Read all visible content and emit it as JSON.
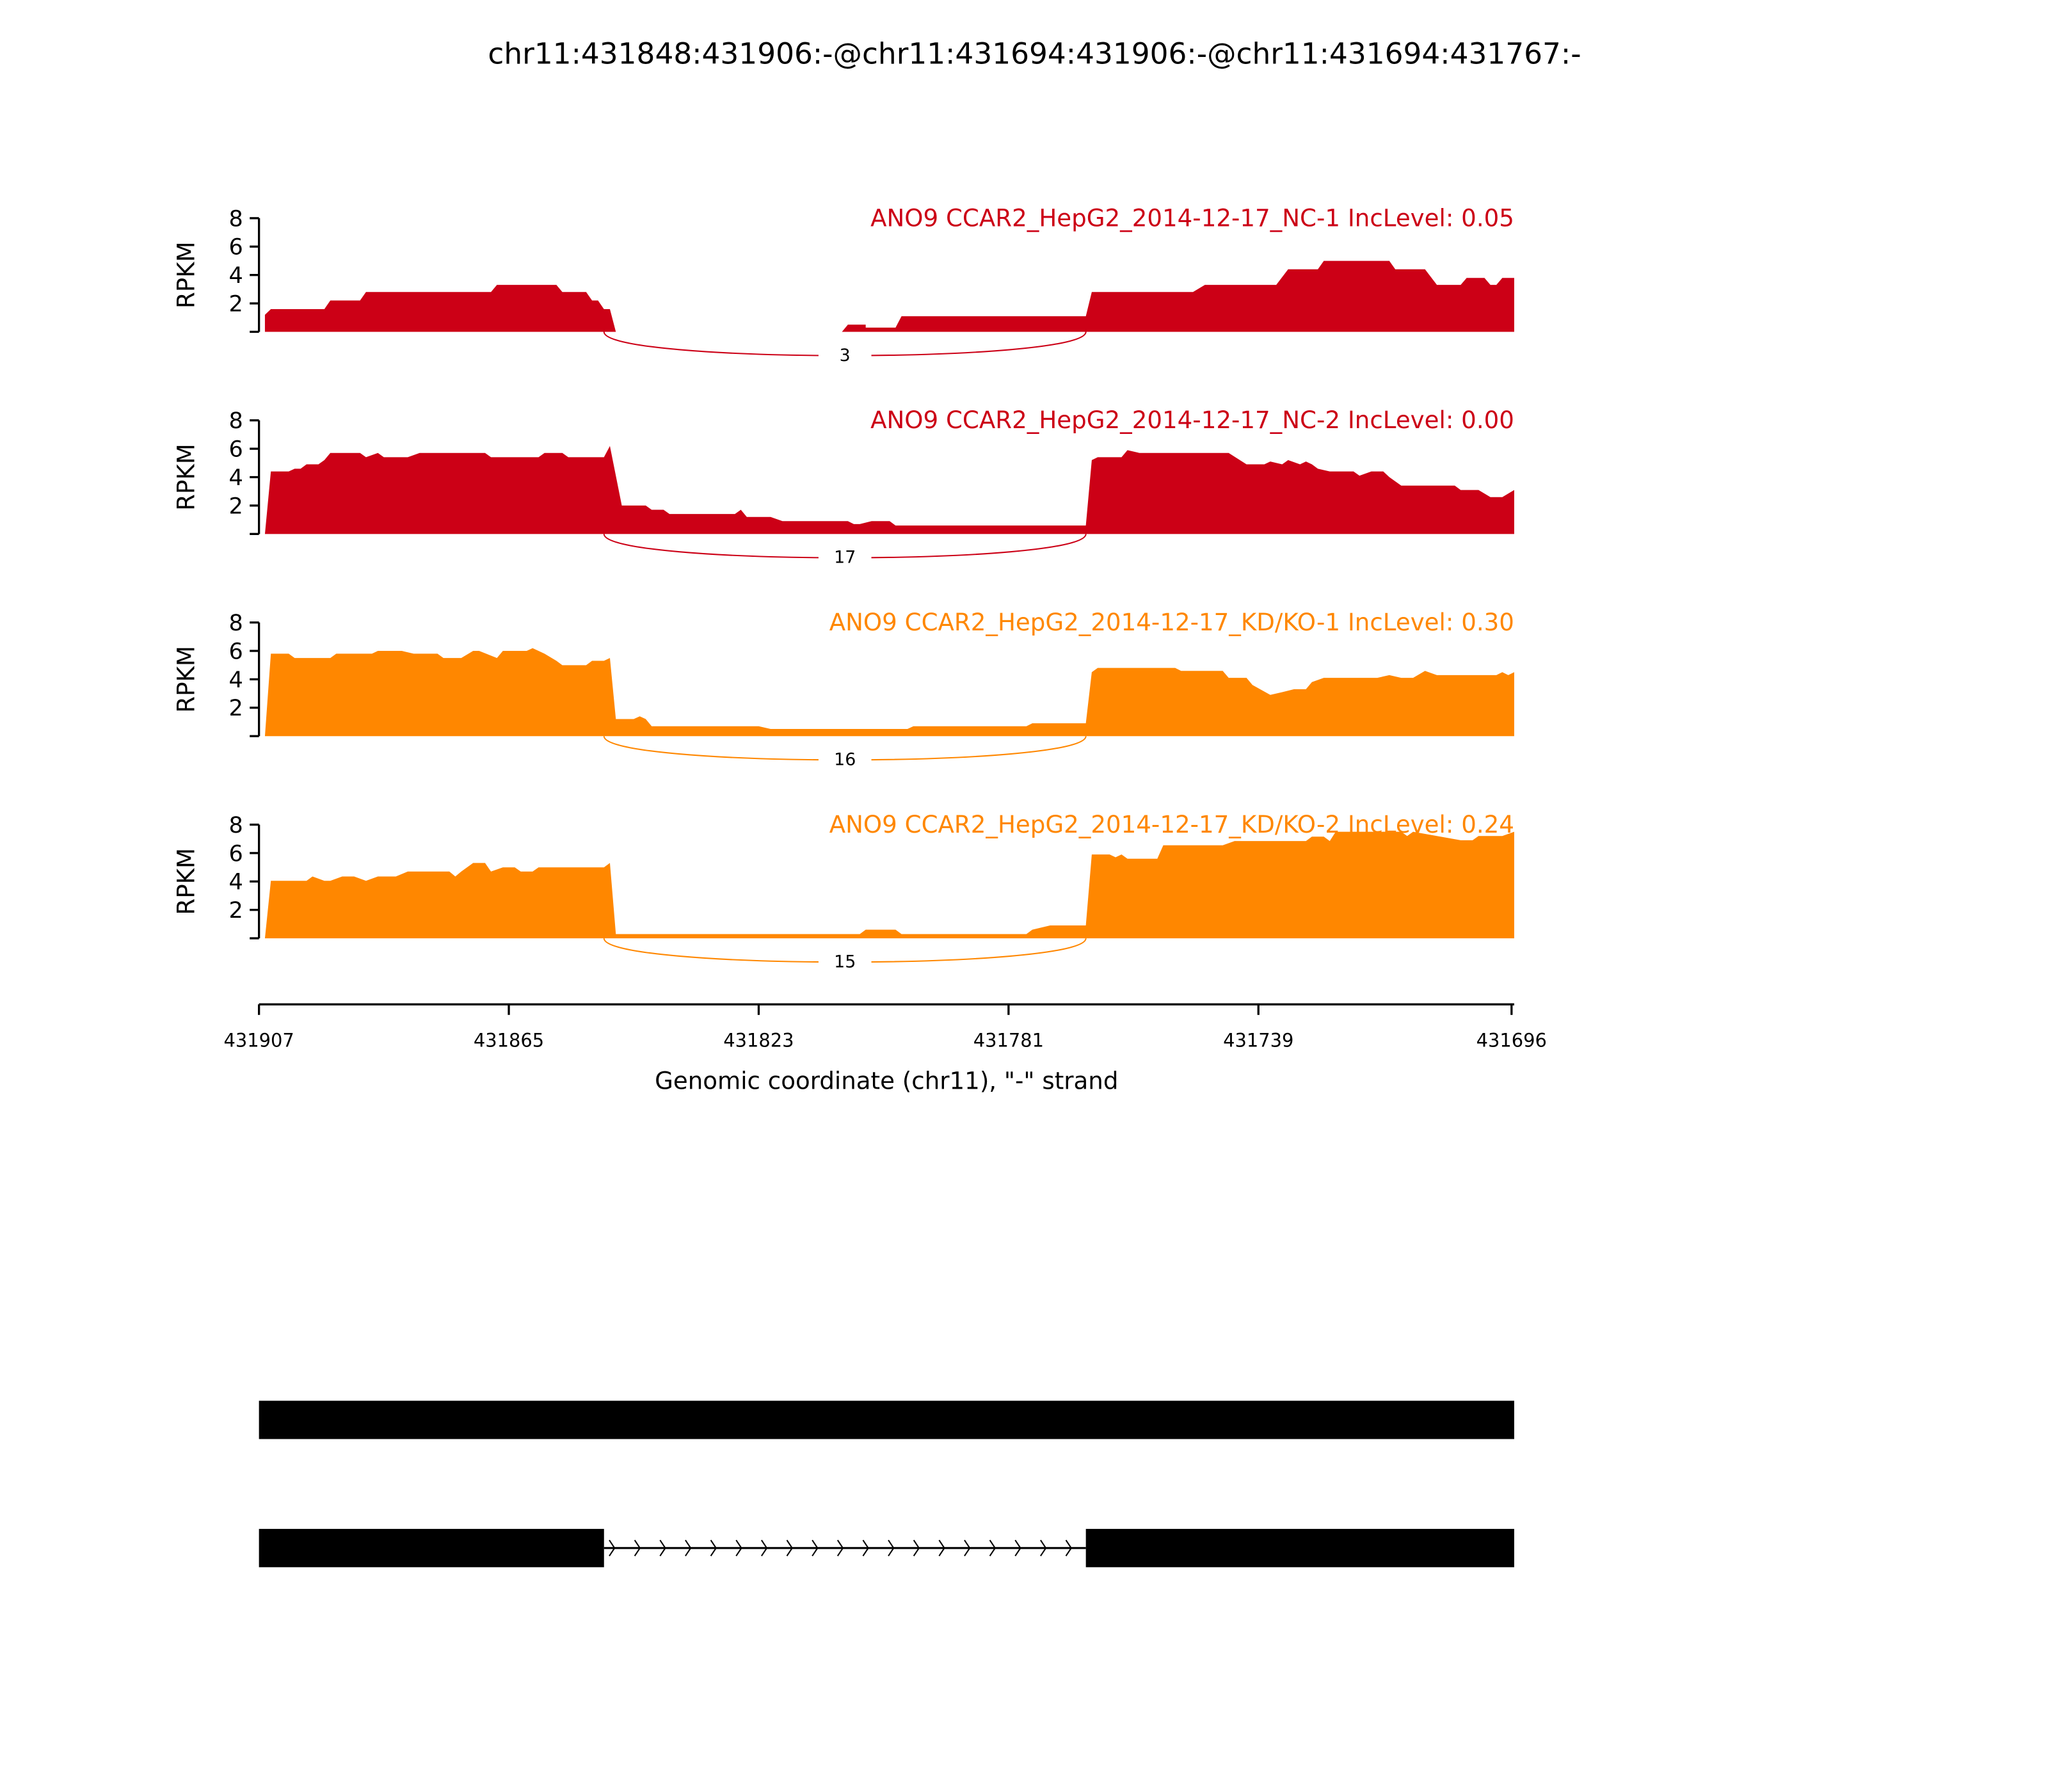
{
  "chart_data": {
    "type": "area",
    "title": "chr11:431848:431906:-@chr11:431694:431906:-@chr11:431694:431767:-",
    "xlabel": "Genomic coordinate (chr11), \"-\" strand",
    "xlim": [
      431907,
      431696
    ],
    "xticks": [
      "431907",
      "431865",
      "431823",
      "431781",
      "431739",
      "431696"
    ],
    "xtick_values": [
      431907,
      431865,
      431823,
      431781,
      431739,
      431696
    ],
    "ylabel": "RPKM",
    "ylim": [
      0,
      8
    ],
    "yticks": [
      "2",
      "4",
      "6",
      "8"
    ],
    "ytick_values": [
      2,
      4,
      6,
      8
    ],
    "junction": {
      "start": 431849,
      "end": 431768
    },
    "panels": [
      {
        "label": "ANO9 CCAR2_HepG2_2014-12-17_NC-1 IncLevel: 0.05",
        "color": "#CC0016",
        "junction_count": "3",
        "coverage": [
          [
            431906,
            1.2
          ],
          [
            431905,
            1.6
          ],
          [
            431896,
            1.6
          ],
          [
            431895,
            2.2
          ],
          [
            431890,
            2.2
          ],
          [
            431889,
            2.8
          ],
          [
            431868,
            2.8
          ],
          [
            431867,
            3.3
          ],
          [
            431857,
            3.3
          ],
          [
            431856,
            2.8
          ],
          [
            431852,
            2.8
          ],
          [
            431851,
            2.2
          ],
          [
            431850,
            2.2
          ],
          [
            431849,
            1.6
          ],
          [
            431848,
            1.6
          ],
          [
            431847,
            0
          ],
          [
            431809,
            0
          ],
          [
            431808,
            0.5
          ],
          [
            431805,
            0.5
          ],
          [
            431805,
            0.3
          ],
          [
            431800,
            0.3
          ],
          [
            431799,
            1.1
          ],
          [
            431768,
            1.1
          ],
          [
            431767,
            2.8
          ],
          [
            431750,
            2.8
          ],
          [
            431748,
            3.3
          ],
          [
            431736,
            3.3
          ],
          [
            431734,
            4.4
          ],
          [
            431729,
            4.4
          ],
          [
            431728,
            5.0
          ],
          [
            431717,
            5.0
          ],
          [
            431716,
            4.4
          ],
          [
            431711,
            4.4
          ],
          [
            431709,
            3.3
          ],
          [
            431705,
            3.3
          ],
          [
            431704,
            3.8
          ],
          [
            431701,
            3.8
          ],
          [
            431700,
            3.3
          ],
          [
            431699,
            3.3
          ],
          [
            431698,
            3.8
          ],
          [
            431696,
            3.8
          ]
        ]
      },
      {
        "label": "ANO9 CCAR2_HepG2_2014-12-17_NC-2 IncLevel: 0.00",
        "color": "#CC0016",
        "junction_count": "17",
        "coverage": [
          [
            431906,
            0
          ],
          [
            431905,
            4.4
          ],
          [
            431902,
            4.4
          ],
          [
            431901,
            4.6
          ],
          [
            431900,
            4.6
          ],
          [
            431899,
            4.9
          ],
          [
            431897,
            4.9
          ],
          [
            431896,
            5.2
          ],
          [
            431895,
            5.7
          ],
          [
            431890,
            5.7
          ],
          [
            431889,
            5.4
          ],
          [
            431887,
            5.7
          ],
          [
            431886,
            5.4
          ],
          [
            431882,
            5.4
          ],
          [
            431880,
            5.7
          ],
          [
            431869,
            5.7
          ],
          [
            431868,
            5.4
          ],
          [
            431860,
            5.4
          ],
          [
            431859,
            5.7
          ],
          [
            431856,
            5.7
          ],
          [
            431855,
            5.4
          ],
          [
            431849,
            5.4
          ],
          [
            431848,
            6.2
          ],
          [
            431846,
            2.0
          ],
          [
            431842,
            2.0
          ],
          [
            431841,
            1.7
          ],
          [
            431839,
            1.7
          ],
          [
            431838,
            1.4
          ],
          [
            431827,
            1.4
          ],
          [
            431826,
            1.7
          ],
          [
            431825,
            1.2
          ],
          [
            431821,
            1.2
          ],
          [
            431819,
            0.9
          ],
          [
            431808,
            0.9
          ],
          [
            431807,
            0.7
          ],
          [
            431806,
            0.7
          ],
          [
            431804,
            0.9
          ],
          [
            431801,
            0.9
          ],
          [
            431800,
            0.6
          ],
          [
            431768,
            0.6
          ],
          [
            431767,
            5.2
          ],
          [
            431766,
            5.4
          ],
          [
            431762,
            5.4
          ],
          [
            431761,
            5.9
          ],
          [
            431759,
            5.7
          ],
          [
            431744,
            5.7
          ],
          [
            431741,
            4.9
          ],
          [
            431738,
            4.9
          ],
          [
            431737,
            5.1
          ],
          [
            431735,
            4.9
          ],
          [
            431734,
            5.2
          ],
          [
            431732,
            4.9
          ],
          [
            431731,
            5.1
          ],
          [
            431730,
            4.9
          ],
          [
            431729,
            4.6
          ],
          [
            431727,
            4.4
          ],
          [
            431723,
            4.4
          ],
          [
            431722,
            4.1
          ],
          [
            431720,
            4.4
          ],
          [
            431718,
            4.4
          ],
          [
            431717,
            4.0
          ],
          [
            431715,
            3.4
          ],
          [
            431706,
            3.4
          ],
          [
            431705,
            3.1
          ],
          [
            431702,
            3.1
          ],
          [
            431700,
            2.6
          ],
          [
            431698,
            2.6
          ],
          [
            431696,
            3.1
          ]
        ]
      },
      {
        "label": "ANO9 CCAR2_HepG2_2014-12-17_KD/KO-1 IncLevel: 0.30",
        "color": "#FF8700",
        "junction_count": "16",
        "coverage": [
          [
            431906,
            0
          ],
          [
            431905,
            5.8
          ],
          [
            431902,
            5.8
          ],
          [
            431901,
            5.5
          ],
          [
            431895,
            5.5
          ],
          [
            431894,
            5.8
          ],
          [
            431888,
            5.8
          ],
          [
            431887,
            6.0
          ],
          [
            431883,
            6.0
          ],
          [
            431881,
            5.8
          ],
          [
            431877,
            5.8
          ],
          [
            431876,
            5.5
          ],
          [
            431873,
            5.5
          ],
          [
            431871,
            6.0
          ],
          [
            431870,
            6.0
          ],
          [
            431867,
            5.5
          ],
          [
            431866,
            6.0
          ],
          [
            431862,
            6.0
          ],
          [
            431861,
            6.2
          ],
          [
            431859,
            5.8
          ],
          [
            431857,
            5.3
          ],
          [
            431856,
            5.0
          ],
          [
            431852,
            5.0
          ],
          [
            431851,
            5.3
          ],
          [
            431849,
            5.3
          ],
          [
            431848,
            5.5
          ],
          [
            431847,
            1.2
          ],
          [
            431844,
            1.2
          ],
          [
            431843,
            1.4
          ],
          [
            431842,
            1.2
          ],
          [
            431841,
            0.7
          ],
          [
            431823,
            0.7
          ],
          [
            431821,
            0.5
          ],
          [
            431798,
            0.5
          ],
          [
            431797,
            0.7
          ],
          [
            431778,
            0.7
          ],
          [
            431777,
            0.9
          ],
          [
            431768,
            0.9
          ],
          [
            431767,
            4.5
          ],
          [
            431766,
            4.8
          ],
          [
            431753,
            4.8
          ],
          [
            431752,
            4.6
          ],
          [
            431745,
            4.6
          ],
          [
            431744,
            4.1
          ],
          [
            431741,
            4.1
          ],
          [
            431740,
            3.6
          ],
          [
            431737,
            2.9
          ],
          [
            431735,
            3.1
          ],
          [
            431733,
            3.3
          ],
          [
            431731,
            3.3
          ],
          [
            431730,
            3.8
          ],
          [
            431728,
            4.1
          ],
          [
            431719,
            4.1
          ],
          [
            431717,
            4.3
          ],
          [
            431715,
            4.1
          ],
          [
            431713,
            4.1
          ],
          [
            431711,
            4.6
          ],
          [
            431709,
            4.3
          ],
          [
            431699,
            4.3
          ],
          [
            431698,
            4.5
          ],
          [
            431697,
            4.3
          ],
          [
            431696,
            4.5
          ]
        ]
      },
      {
        "label": "ANO9 CCAR2_HepG2_2014-12-17_KD/KO-2 IncLevel: 0.24",
        "color": "#FF8700",
        "junction_count": "15",
        "coverage": [
          [
            431906,
            0
          ],
          [
            431905,
            4.05
          ],
          [
            431899,
            4.05
          ],
          [
            431898,
            4.35
          ],
          [
            431896,
            4.05
          ],
          [
            431895,
            4.05
          ],
          [
            431893,
            4.35
          ],
          [
            431891,
            4.35
          ],
          [
            431889,
            4.05
          ],
          [
            431887,
            4.35
          ],
          [
            431884,
            4.35
          ],
          [
            431882,
            4.7
          ],
          [
            431875,
            4.7
          ],
          [
            431874,
            4.35
          ],
          [
            431873,
            4.7
          ],
          [
            431871,
            5.3
          ],
          [
            431869,
            5.3
          ],
          [
            431868,
            4.7
          ],
          [
            431866,
            5.0
          ],
          [
            431864,
            5.0
          ],
          [
            431863,
            4.7
          ],
          [
            431861,
            4.7
          ],
          [
            431860,
            5.0
          ],
          [
            431849,
            5.0
          ],
          [
            431848,
            5.3
          ],
          [
            431847,
            0.3
          ],
          [
            431806,
            0.3
          ],
          [
            431805,
            0.6
          ],
          [
            431800,
            0.6
          ],
          [
            431799,
            0.3
          ],
          [
            431778,
            0.3
          ],
          [
            431777,
            0.6
          ],
          [
            431774,
            0.9
          ],
          [
            431768,
            0.9
          ],
          [
            431767,
            5.9
          ],
          [
            431764,
            5.9
          ],
          [
            431763,
            5.7
          ],
          [
            431762,
            5.9
          ],
          [
            431761,
            5.6
          ],
          [
            431756,
            5.6
          ],
          [
            431755,
            6.55
          ],
          [
            431745,
            6.55
          ],
          [
            431743,
            6.85
          ],
          [
            431731,
            6.85
          ],
          [
            431730,
            7.15
          ],
          [
            431728,
            7.15
          ],
          [
            431727,
            6.85
          ],
          [
            431726,
            7.5
          ],
          [
            431715,
            7.5
          ],
          [
            431714,
            7.2
          ],
          [
            431713,
            7.5
          ],
          [
            431709,
            7.2
          ],
          [
            431705,
            6.9
          ],
          [
            431703,
            6.9
          ],
          [
            431702,
            7.2
          ],
          [
            431698,
            7.2
          ],
          [
            431696,
            7.5
          ]
        ]
      }
    ],
    "gene_models": [
      {
        "exons": [
          [
            431907,
            431696
          ]
        ]
      },
      {
        "exons": [
          [
            431907,
            431849
          ],
          [
            431768,
            431696
          ]
        ],
        "intron": [
          431849,
          431768
        ]
      }
    ]
  }
}
